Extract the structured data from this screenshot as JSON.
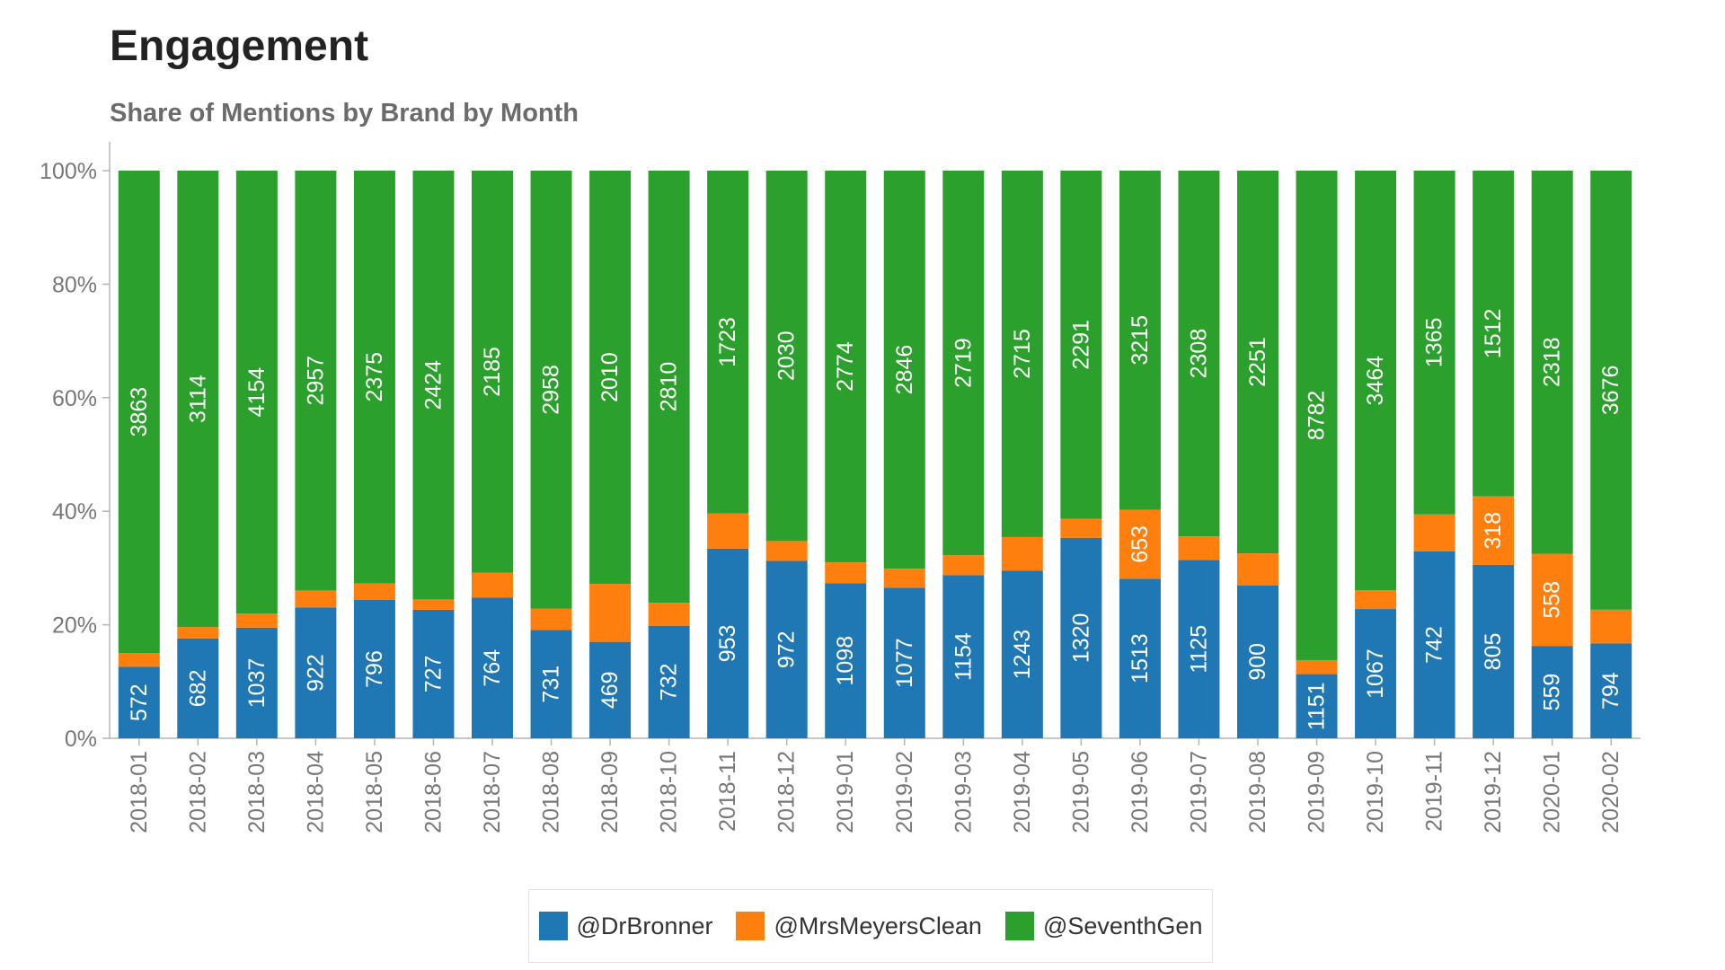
{
  "header": {
    "title": "Engagement",
    "subtitle": "Share of Mentions by Brand by Month"
  },
  "chart_data": {
    "type": "bar",
    "stacked": true,
    "normalized": true,
    "title": "Share of Mentions by Brand by Month",
    "xlabel": "",
    "ylabel": "",
    "ylim": [
      0,
      100
    ],
    "y_ticks": [
      "0%",
      "20%",
      "40%",
      "60%",
      "80%",
      "100%"
    ],
    "grid": false,
    "legend_position": "bottom",
    "categories": [
      "2018-01",
      "2018-02",
      "2018-03",
      "2018-04",
      "2018-05",
      "2018-06",
      "2018-07",
      "2018-08",
      "2018-09",
      "2018-10",
      "2018-11",
      "2018-12",
      "2019-01",
      "2019-02",
      "2019-03",
      "2019-04",
      "2019-05",
      "2019-06",
      "2019-07",
      "2019-08",
      "2019-09",
      "2019-10",
      "2019-11",
      "2019-12",
      "2020-01",
      "2020-02"
    ],
    "series": [
      {
        "name": "@DrBronner",
        "color": "#1f77b4",
        "values": [
          572,
          682,
          1037,
          922,
          796,
          727,
          764,
          731,
          469,
          732,
          953,
          972,
          1098,
          1077,
          1154,
          1243,
          1320,
          1513,
          1125,
          900,
          1151,
          1067,
          742,
          805,
          559,
          794
        ],
        "labels": [
          "572",
          "682",
          "1037",
          "922",
          "796",
          "727",
          "764",
          "731",
          "469",
          "732",
          "953",
          "972",
          "1098",
          "1077",
          "1154",
          "1243",
          "1320",
          "1513",
          "1125",
          "900",
          "1151",
          "1067",
          "742",
          "805",
          "559",
          "794"
        ]
      },
      {
        "name": "@MrsMeyersClean",
        "color": "#ff7f0e",
        "values": [
          109,
          77,
          131,
          119,
          96,
          58,
          135,
          143,
          282,
          149,
          176,
          109,
          148,
          136,
          140,
          248,
          125,
          653,
          150,
          188,
          252,
          154,
          147,
          318,
          558,
          283
        ],
        "labels": [
          "",
          "",
          "",
          "",
          "",
          "",
          "",
          "",
          "",
          "",
          "",
          "",
          "",
          "",
          "",
          "",
          "",
          "653",
          "",
          "",
          "",
          "",
          "",
          "318",
          "558",
          ""
        ]
      },
      {
        "name": "@SeventhGen",
        "color": "#2ca02c",
        "values": [
          3863,
          3114,
          4154,
          2957,
          2375,
          2424,
          2185,
          2958,
          2010,
          2810,
          1723,
          2030,
          2774,
          2846,
          2719,
          2715,
          2291,
          3215,
          2308,
          2251,
          8782,
          3464,
          1365,
          1512,
          2318,
          3676
        ],
        "labels": [
          "3863",
          "3114",
          "4154",
          "2957",
          "2375",
          "2424",
          "2185",
          "2958",
          "2010",
          "2810",
          "1723",
          "2030",
          "2774",
          "2846",
          "2719",
          "2715",
          "2291",
          "3215",
          "2308",
          "2251",
          "8782",
          "3464",
          "1365",
          "1512",
          "2318",
          "3676"
        ]
      }
    ]
  }
}
